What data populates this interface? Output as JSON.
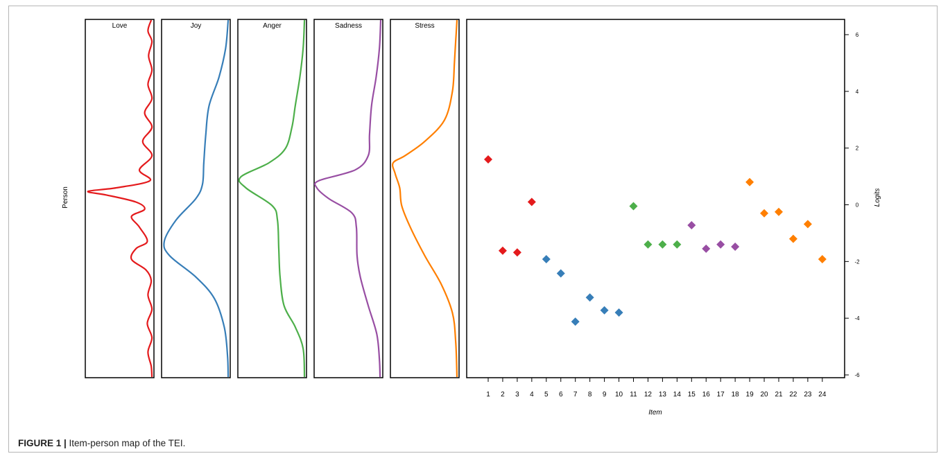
{
  "caption": {
    "label": "FIGURE 1 |",
    "text": " Item-person map of the TEI."
  },
  "chart_data": {
    "type": "scatter",
    "person_axis_label": "Person",
    "xlabel": "Item",
    "ylabel": "Logits",
    "ylim": [
      -6,
      6
    ],
    "yticks": [
      6,
      4,
      2,
      0,
      -2,
      -4,
      -6
    ],
    "grid": false,
    "legend": "none",
    "density_panels": [
      {
        "name": "Love",
        "color": "#e41a1c"
      },
      {
        "name": "Joy",
        "color": "#377eb8"
      },
      {
        "name": "Anger",
        "color": "#4daf4a"
      },
      {
        "name": "Sadness",
        "color": "#984ea3"
      },
      {
        "name": "Stress",
        "color": "#ff7f00"
      }
    ],
    "items": [
      {
        "x": 1,
        "y": 1.6,
        "group": "Love"
      },
      {
        "x": 2,
        "y": -1.62,
        "group": "Love"
      },
      {
        "x": 3,
        "y": -1.68,
        "group": "Love"
      },
      {
        "x": 4,
        "y": 0.1,
        "group": "Love"
      },
      {
        "x": 5,
        "y": -1.92,
        "group": "Joy"
      },
      {
        "x": 6,
        "y": -2.42,
        "group": "Joy"
      },
      {
        "x": 7,
        "y": -4.12,
        "group": "Joy"
      },
      {
        "x": 8,
        "y": -3.27,
        "group": "Joy"
      },
      {
        "x": 9,
        "y": -3.72,
        "group": "Joy"
      },
      {
        "x": 10,
        "y": -3.8,
        "group": "Joy"
      },
      {
        "x": 11,
        "y": -0.05,
        "group": "Anger"
      },
      {
        "x": 12,
        "y": -1.4,
        "group": "Anger"
      },
      {
        "x": 13,
        "y": -1.4,
        "group": "Anger"
      },
      {
        "x": 14,
        "y": -1.4,
        "group": "Anger"
      },
      {
        "x": 15,
        "y": -0.72,
        "group": "Sadness"
      },
      {
        "x": 16,
        "y": -1.55,
        "group": "Sadness"
      },
      {
        "x": 17,
        "y": -1.4,
        "group": "Sadness"
      },
      {
        "x": 18,
        "y": -1.48,
        "group": "Sadness"
      },
      {
        "x": 19,
        "y": 0.8,
        "group": "Stress"
      },
      {
        "x": 20,
        "y": -0.3,
        "group": "Stress"
      },
      {
        "x": 21,
        "y": -0.25,
        "group": "Stress"
      },
      {
        "x": 22,
        "y": -1.2,
        "group": "Stress"
      },
      {
        "x": 23,
        "y": -0.68,
        "group": "Stress"
      },
      {
        "x": 24,
        "y": -1.92,
        "group": "Stress"
      }
    ]
  }
}
